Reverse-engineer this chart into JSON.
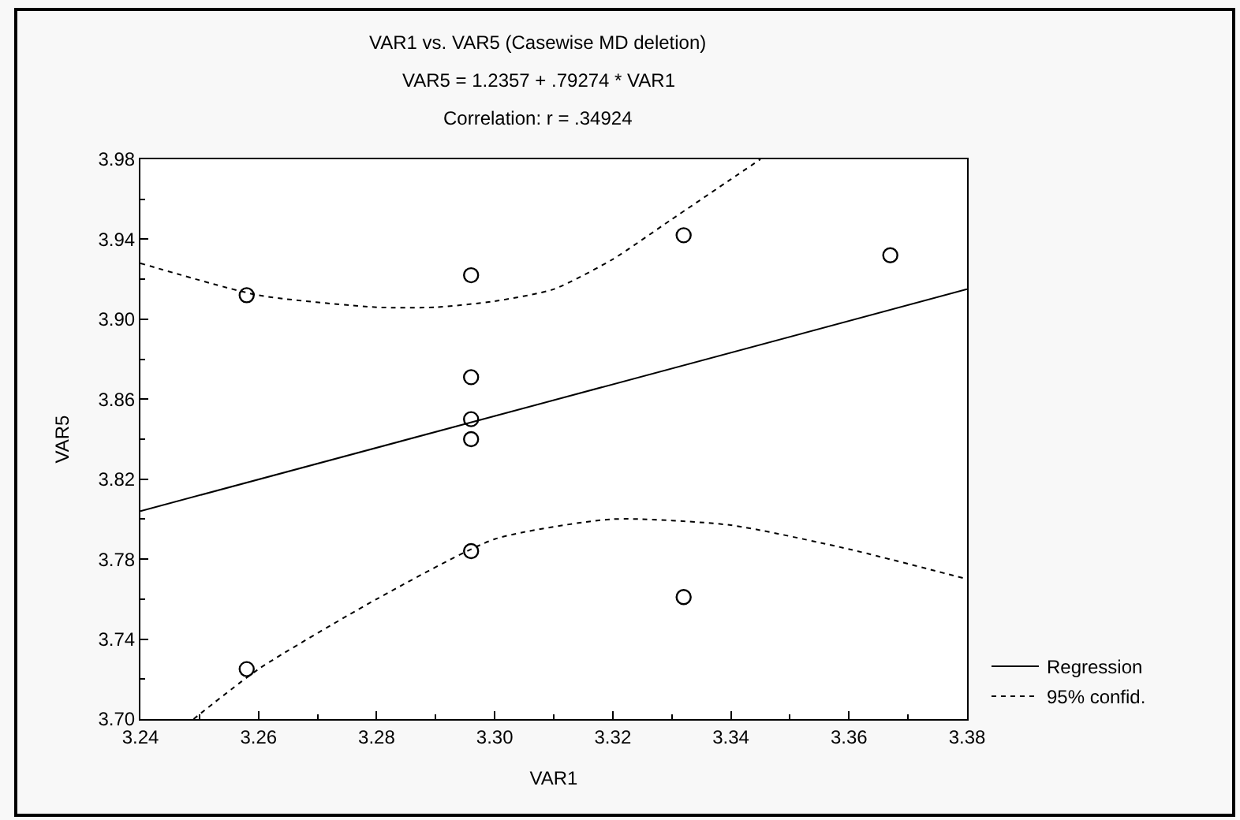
{
  "chart_data": {
    "type": "scatter",
    "title": "VAR1 vs. VAR5 (Casewise MD deletion)",
    "subtitle": "VAR5 = 1.2357 + .79274 * VAR1",
    "xlabel": "VAR1",
    "ylabel": "VAR5",
    "annotations": [
      "Correlation: r = .34924"
    ],
    "series": [
      {
        "color": "#000000",
        "marker": "circle",
        "x": [
          3.258,
          3.296,
          3.296,
          3.296,
          3.296,
          3.296,
          3.258,
          3.332,
          3.332,
          3.367
        ],
        "values": [
          3.912,
          3.922,
          3.871,
          3.85,
          3.84,
          3.784,
          3.725,
          3.942,
          3.761,
          3.932
        ]
      },
      {
        "type": "line",
        "name": "Regression",
        "color": "#000000",
        "line_style": "solid",
        "x": [
          3.24,
          3.38
        ],
        "values": [
          3.804,
          3.915
        ]
      },
      {
        "type": "line",
        "name": "95% confid.",
        "color": "#000000",
        "line_style": "dotted",
        "x": [
          3.24,
          3.26,
          3.28,
          3.29,
          3.3,
          3.31,
          3.32,
          3.33,
          3.34,
          3.345
        ],
        "values": [
          3.928,
          3.912,
          3.906,
          3.906,
          3.909,
          3.915,
          3.93,
          3.95,
          3.97,
          3.98
        ]
      },
      {
        "type": "line",
        "color": "#000000",
        "line_style": "dotted",
        "x": [
          3.249,
          3.26,
          3.28,
          3.3,
          3.32,
          3.34,
          3.36,
          3.38
        ],
        "values": [
          3.7,
          3.725,
          3.76,
          3.79,
          3.8,
          3.797,
          3.785,
          3.77
        ]
      }
    ],
    "xlim": [
      3.24,
      3.38
    ],
    "xticks": [
      3.24,
      3.26,
      3.28,
      {
        "value": 3.3,
        "label": "3.30"
      },
      3.32,
      3.34,
      3.36,
      3.38
    ],
    "ylim": [
      3.7,
      3.98
    ],
    "yticks": [
      {
        "value": 3.7,
        "label": "3.70"
      },
      3.74,
      3.78,
      3.82,
      3.86,
      {
        "value": 3.9,
        "label": "3.90"
      },
      3.94,
      3.98
    ],
    "legend": "bottom right"
  }
}
